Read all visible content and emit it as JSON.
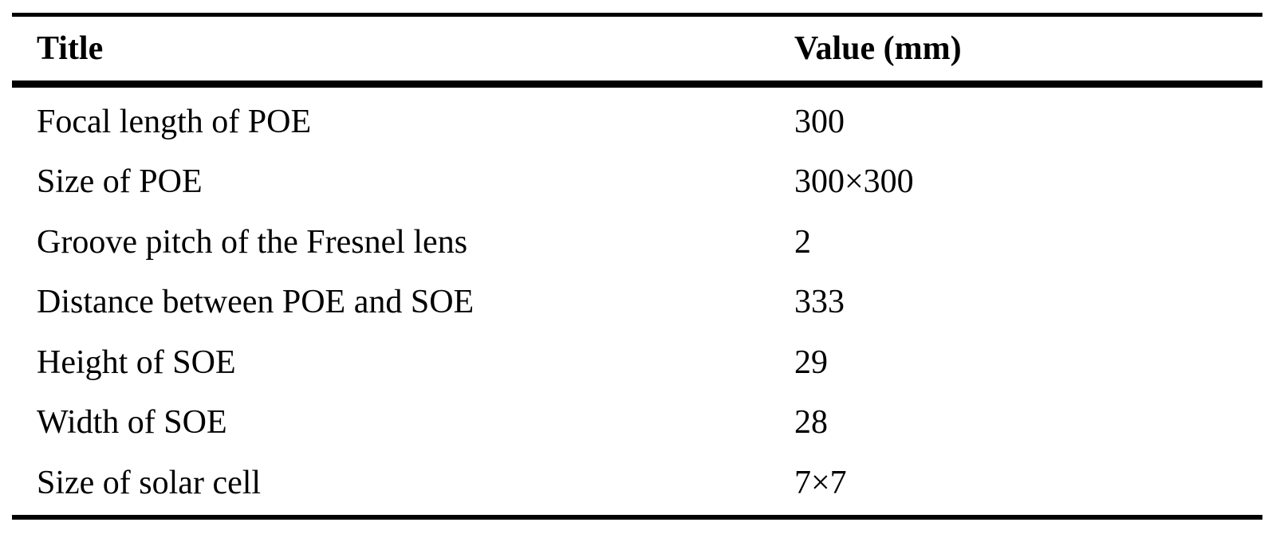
{
  "table": {
    "header": {
      "title": "Title",
      "value": "Value (mm)"
    },
    "rows": [
      {
        "title": "Focal length of POE",
        "value": "300"
      },
      {
        "title": "Size of POE",
        "value": "300×300"
      },
      {
        "title": "Groove pitch of the Fresnel lens",
        "value": "2"
      },
      {
        "title": "Distance between POE and SOE",
        "value": "333"
      },
      {
        "title": "Height of SOE",
        "value": "29"
      },
      {
        "title": "Width of SOE",
        "value": "28"
      },
      {
        "title": "Size of solar cell",
        "value": "7×7"
      }
    ]
  }
}
